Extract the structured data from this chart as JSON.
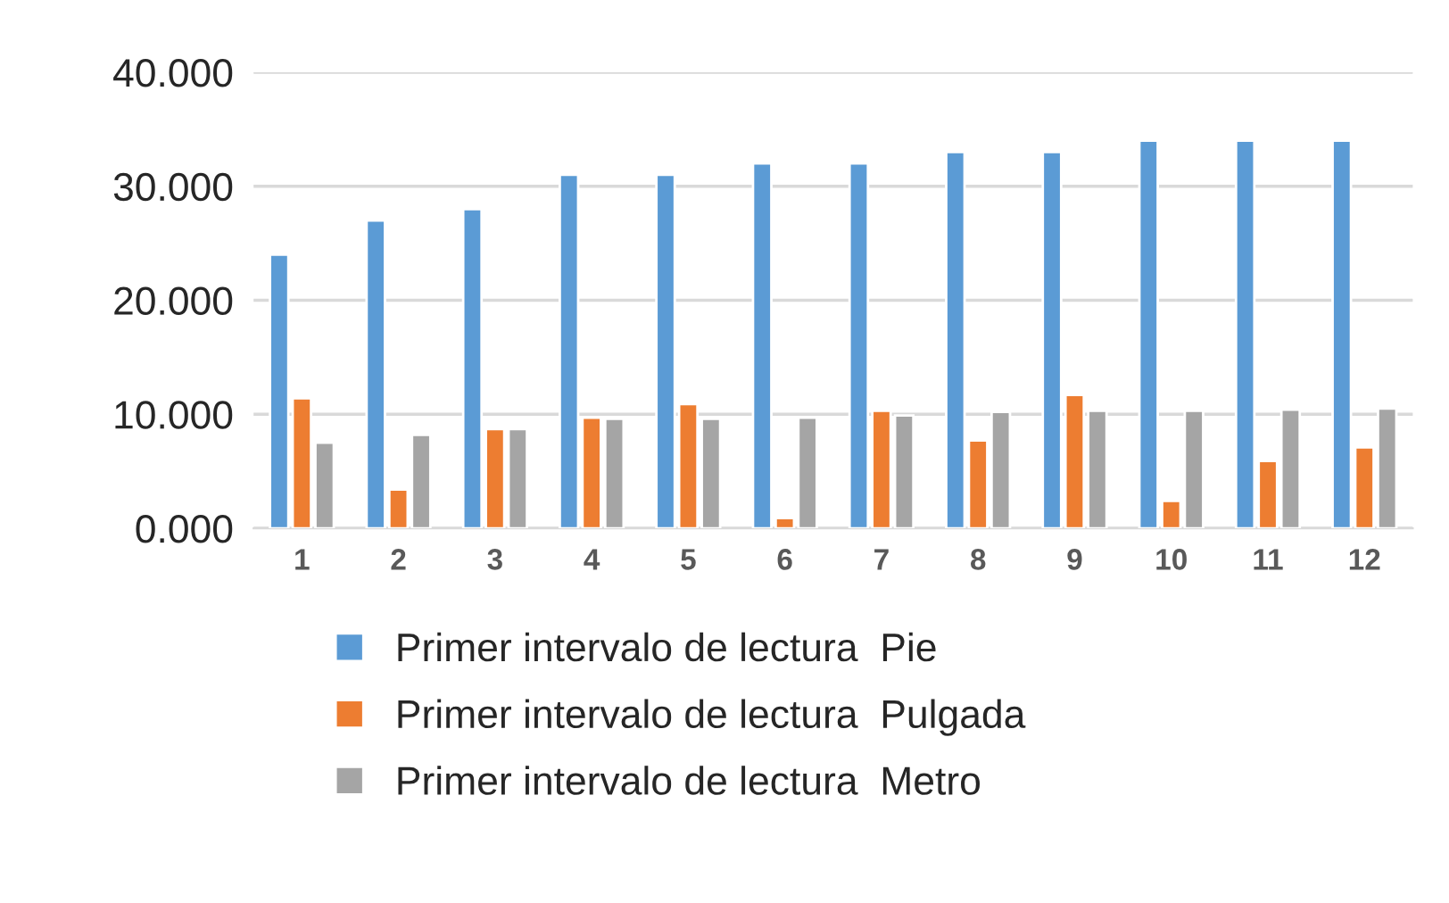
{
  "chart_data": {
    "type": "bar",
    "categories": [
      "1",
      "2",
      "3",
      "4",
      "5",
      "6",
      "7",
      "8",
      "9",
      "10",
      "11",
      "12"
    ],
    "series": [
      {
        "name": "Primer intervalo de lectura  Pie",
        "color": "#5b9bd5",
        "values": [
          24,
          27,
          28,
          31,
          31,
          32,
          32,
          33,
          33,
          34,
          34,
          34
        ]
      },
      {
        "name": "Primer intervalo de lectura  Pulgada",
        "color": "#ed7d31",
        "values": [
          11.4,
          3.4,
          8.7,
          9.7,
          10.9,
          0.9,
          10.3,
          7.7,
          11.7,
          2.4,
          5.9,
          7.1
        ]
      },
      {
        "name": "Primer intervalo de lectura  Metro",
        "color": "#a5a5a5",
        "values": [
          7.5,
          8.2,
          8.7,
          9.6,
          9.6,
          9.7,
          9.9,
          10.2,
          10.3,
          10.3,
          10.4,
          10.5
        ]
      }
    ],
    "ylim": [
      0,
      40
    ],
    "yticks": [
      {
        "value": 0,
        "label": "0.000"
      },
      {
        "value": 10,
        "label": "10.000"
      },
      {
        "value": 20,
        "label": "20.000"
      },
      {
        "value": 30,
        "label": "30.000"
      },
      {
        "value": 40,
        "label": "40.000"
      }
    ],
    "grid": "y",
    "legend": "bottom"
  }
}
